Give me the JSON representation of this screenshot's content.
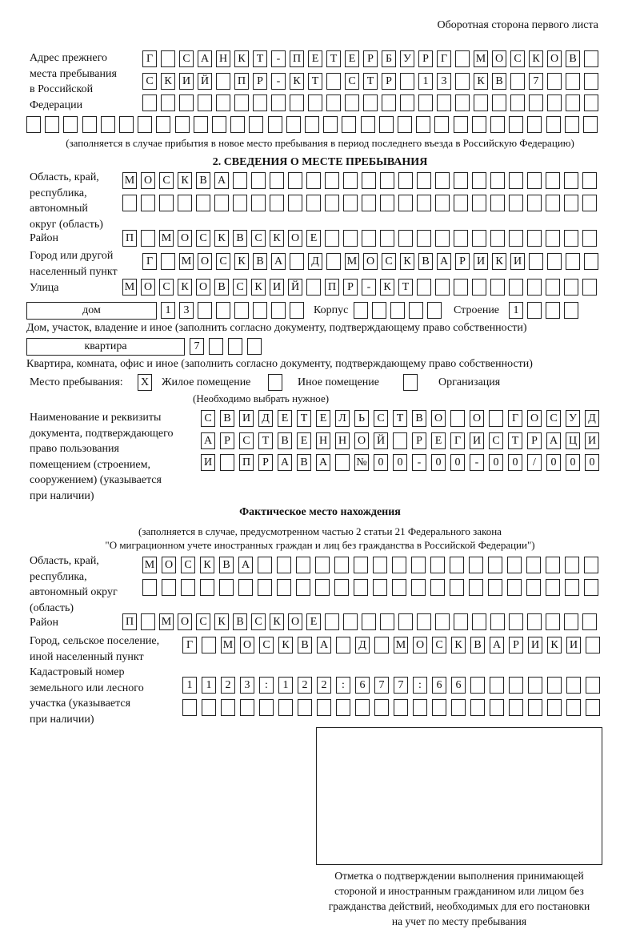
{
  "header": "Оборотная сторона первого листа",
  "prev_address": {
    "label": "Адрес прежнего\nместа пребывания\nв Российской\nФедерации",
    "rows": [
      "Г САНКТ-ПЕТЕРБУРГ МОСКОВ",
      "СКИЙ ПР-КТ СТР 13 КВ 7",
      "",
      ""
    ],
    "note": "(заполняется в случае прибытия в новое место пребывания в период последнего въезда в Российскую Федерацию)"
  },
  "section2": {
    "title": "2. СВЕДЕНИЯ О МЕСТЕ ПРЕБЫВАНИЯ",
    "region_label": "Область, край,\nреспублика,\nавтономный\nокруг (область)",
    "region_rows": [
      "МОСКВА",
      ""
    ],
    "district_label": "Район",
    "district": "П МОСКВСКОЕ",
    "city_label": "Город или другой\nнаселенный пункт",
    "city": "Г МОСКВА Д МОСКВАРИКИ",
    "street_label": "Улица",
    "street": "МОСКОВСКИЙ ПР-КТ",
    "house_type": "дом",
    "house": "13",
    "korpus_label": "Корпус",
    "korpus": "",
    "building_label": "Строение",
    "building": "1",
    "house_note": "Дом, участок, владение и иное (заполнить согласно документу, подтверждающему право собственности)",
    "apt_type": "квартира",
    "apt": "7",
    "apt_note": "Квартира, комната, офис и иное (заполнить согласно документу, подтверждающему право собственности)",
    "place_label": "Место пребывания:",
    "place_options": [
      {
        "label": "Жилое помещение",
        "checked": true,
        "mark": "X"
      },
      {
        "label": "Иное помещение",
        "checked": false
      },
      {
        "label": "Организация",
        "checked": false
      }
    ],
    "place_note": "(Необходимо выбрать нужное)",
    "doc_label": "Наименование и реквизиты\nдокумента, подтверждающего\nправо пользования\nпомещением (строением,\nсооружением) (указывается\nпри наличии)",
    "doc_rows": [
      "СВИДЕТЕЛЬСТВО О ГОСУД",
      "АРСТВЕННОЙ РЕГИСТРАЦИ",
      "И ПРАВА №00-00-00/000"
    ]
  },
  "actual": {
    "title": "Фактическое место нахождения",
    "note1": "(заполняется в случае, предусмотренном частью 2 статьи 21 Федерального закона",
    "note2": "\"О миграционном учете иностранных граждан и лиц без гражданства в Российской Федерации\")",
    "region_label": "Область, край,\nреспублика,\nавтономный округ\n(область)",
    "region_rows": [
      "МОСКВА",
      ""
    ],
    "district_label": "Район",
    "district": "П МОСКВСКОЕ",
    "city_label": "Город, сельское поселение,\nиной населенный пункт",
    "city": "Г МОСКВА Д МОСКВАРИКИ",
    "cadastral_label": "Кадастровый номер\nземельного или лесного\nучастка (указывается\nпри наличии)",
    "cadastral_rows": [
      "1123:122:677:66",
      ""
    ]
  },
  "stamp_caption": "Отметка о подтверждении выполнения принимающей\nстороной и иностранным гражданином или лицом без\nгражданства действий, необходимых для его постановки\nна учет по месту пребывания"
}
